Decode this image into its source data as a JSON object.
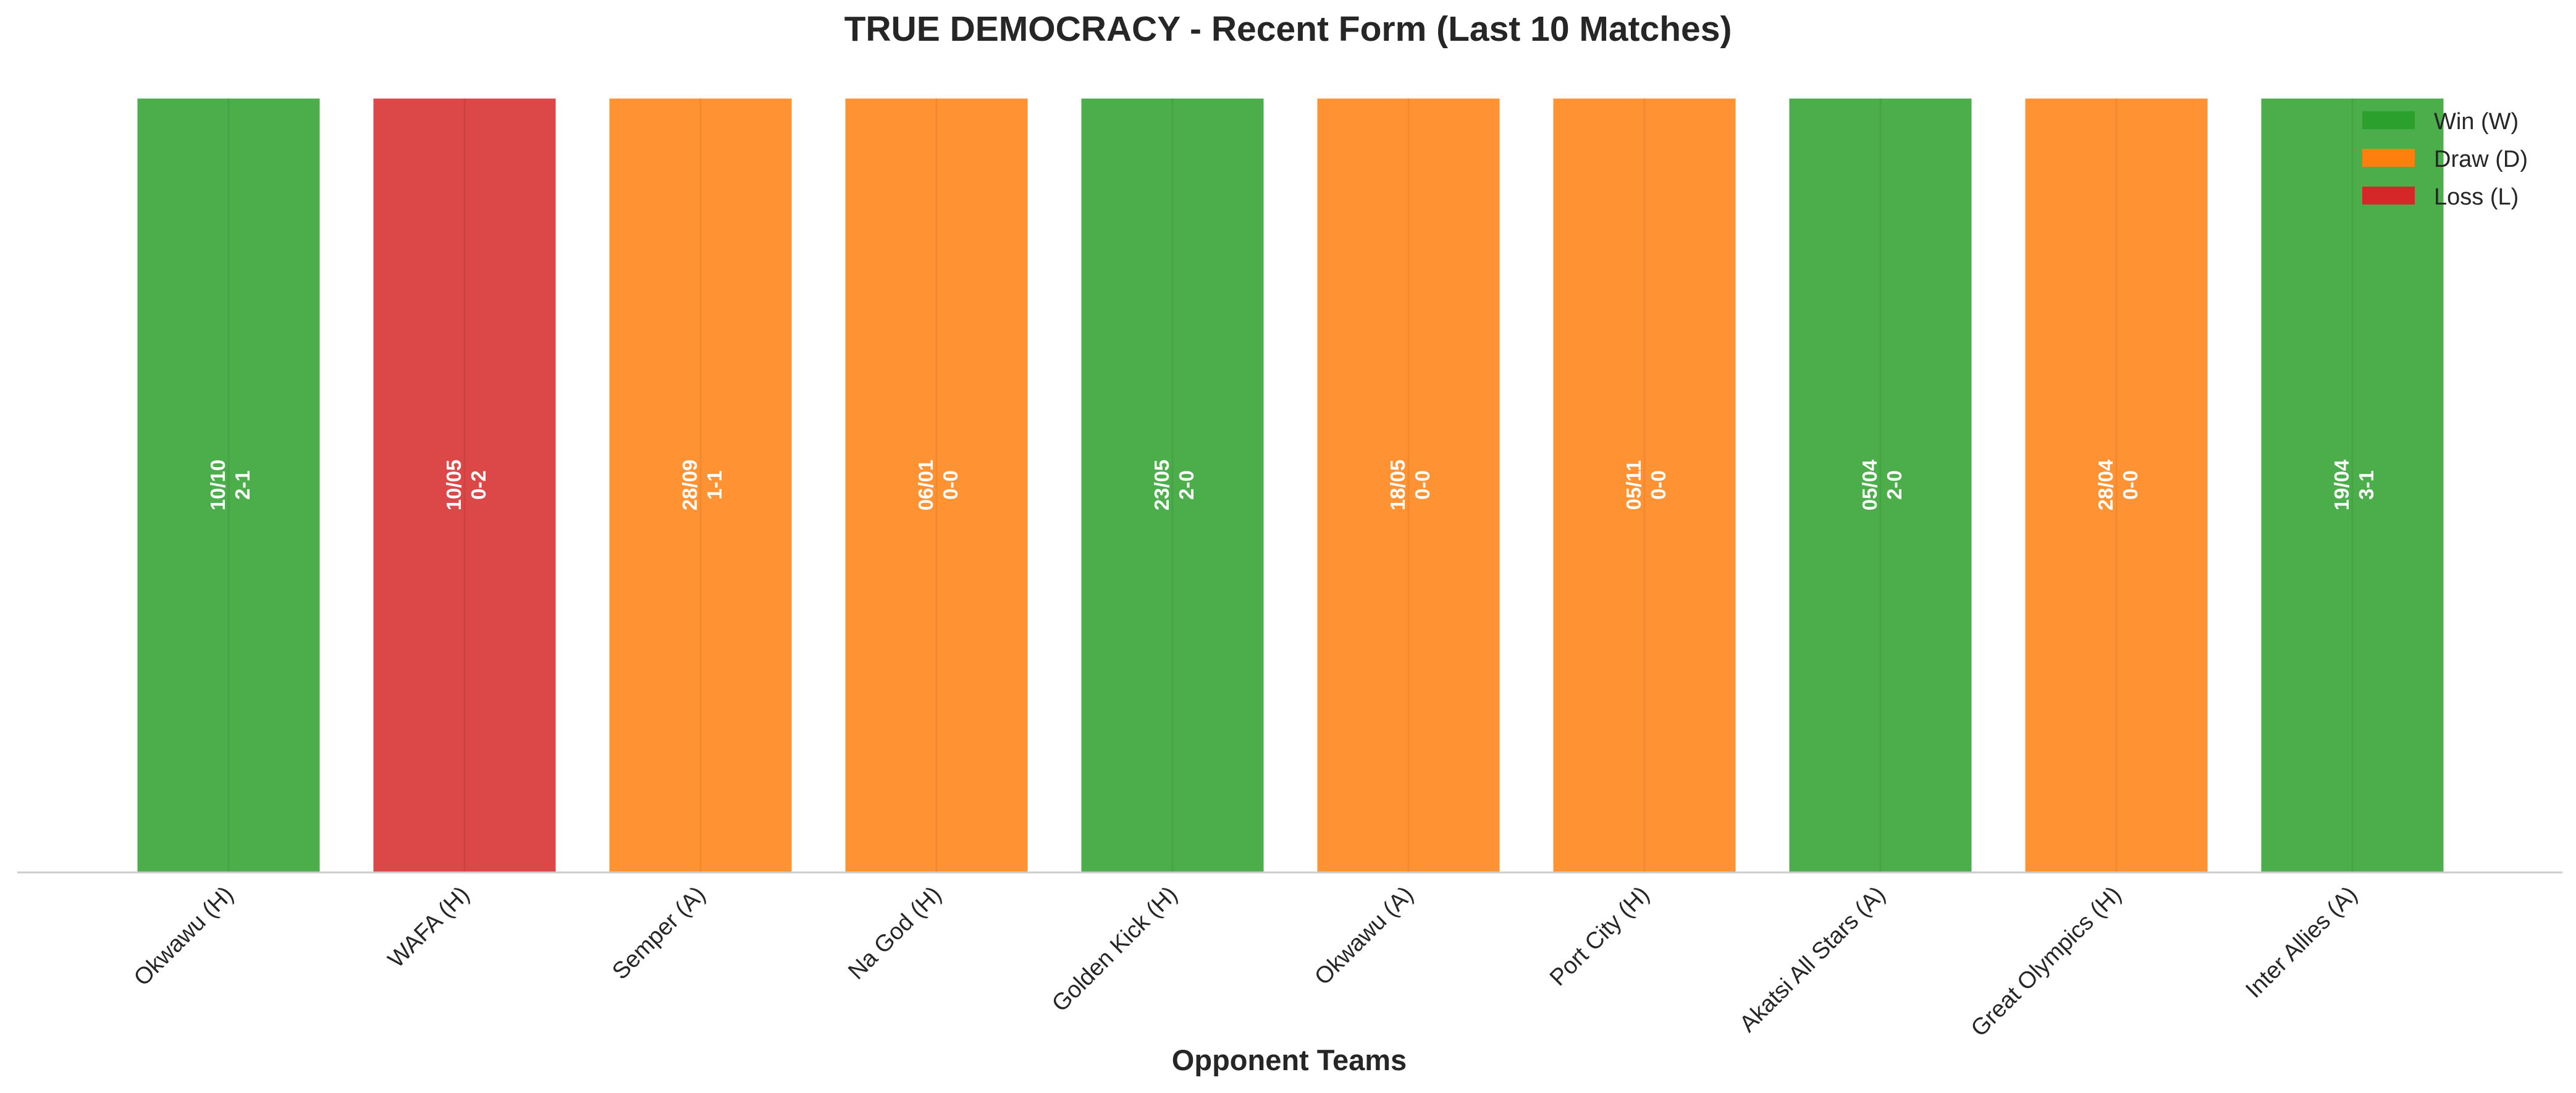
{
  "chart_data": {
    "type": "bar",
    "title": "TRUE DEMOCRACY - Recent Form (Last 10 Matches)",
    "xlabel": "Opponent Teams",
    "ylabel": "",
    "ylim": [
      0,
      1
    ],
    "grid": false,
    "legend_position": "top-right",
    "colors": {
      "W": "#2ca02c",
      "D": "#ff7f0e",
      "L": "#d62728"
    },
    "legend": [
      {
        "key": "W",
        "label": "Win (W)"
      },
      {
        "key": "D",
        "label": "Draw (D)"
      },
      {
        "key": "L",
        "label": "Loss (L)"
      }
    ],
    "categories": [
      "Okwawu (H)",
      "WAFA (H)",
      "Semper (A)",
      "Na God (H)",
      "Golden Kick (H)",
      "Okwawu (A)",
      "Port City (H)",
      "Akatsi All Stars (A)",
      "Great Olympics (H)",
      "Inter Allies (A)"
    ],
    "values": [
      1,
      1,
      1,
      1,
      1,
      1,
      1,
      1,
      1,
      1
    ],
    "results": [
      "W",
      "L",
      "D",
      "D",
      "W",
      "D",
      "D",
      "W",
      "D",
      "W"
    ],
    "dates": [
      "10/10",
      "10/05",
      "28/09",
      "06/01",
      "23/05",
      "18/05",
      "05/11",
      "05/04",
      "28/04",
      "19/04"
    ],
    "scores": [
      "2-1",
      "0-2",
      "1-1",
      "0-0",
      "2-0",
      "0-0",
      "0-0",
      "2-0",
      "0-0",
      "3-1"
    ]
  }
}
